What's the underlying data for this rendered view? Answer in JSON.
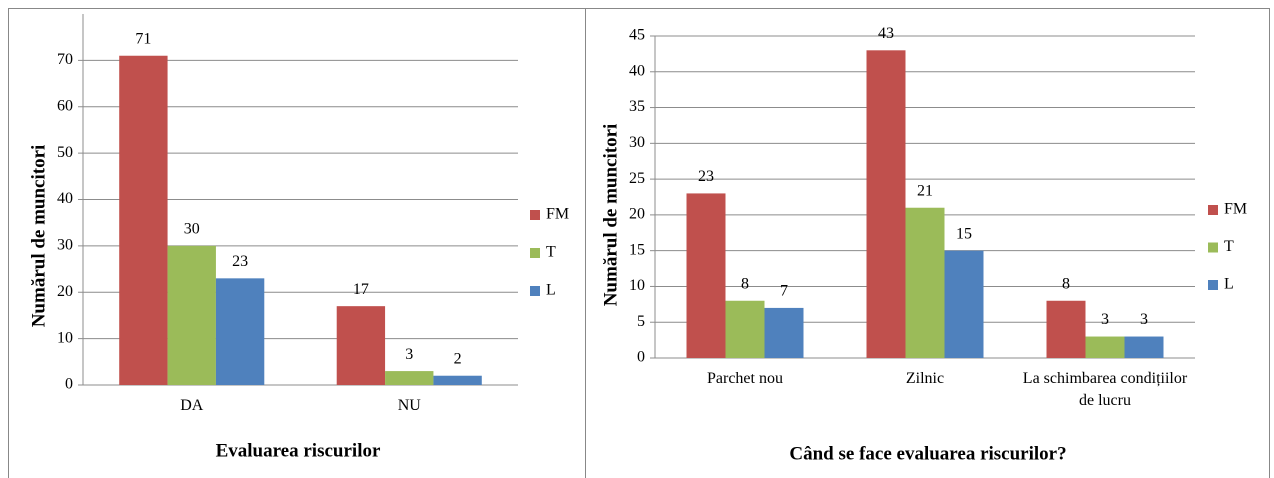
{
  "chart_data": [
    {
      "type": "bar",
      "x_label": "Evaluarea riscurilor",
      "y_label": "Numărul de muncitori",
      "categories": [
        "DA",
        "NU"
      ],
      "series": [
        {
          "name": "FM",
          "color": "#c0504d",
          "values": [
            71,
            17
          ]
        },
        {
          "name": "T",
          "color": "#9bbb59",
          "values": [
            30,
            3
          ]
        },
        {
          "name": "L",
          "color": "#4f81bd",
          "values": [
            23,
            2
          ]
        }
      ],
      "ylim": [
        0,
        80
      ],
      "yticks": [
        0,
        10,
        20,
        30,
        40,
        50,
        60,
        70
      ],
      "grid": true,
      "legend": "right"
    },
    {
      "type": "bar",
      "x_label": "Când se face evaluarea riscurilor?",
      "y_label": "Numărul de muncitori",
      "categories": [
        "Parchet nou",
        "Zilnic",
        "La schimbarea condițiilor de lucru"
      ],
      "series": [
        {
          "name": "FM",
          "color": "#c0504d",
          "values": [
            23,
            43,
            8
          ]
        },
        {
          "name": "T",
          "color": "#9bbb59",
          "values": [
            8,
            21,
            3
          ]
        },
        {
          "name": "L",
          "color": "#4f81bd",
          "values": [
            7,
            15,
            3
          ]
        }
      ],
      "ylim": [
        0,
        45
      ],
      "yticks": [
        0,
        5,
        10,
        15,
        20,
        25,
        30,
        35,
        40,
        45
      ],
      "grid": true,
      "legend": "right"
    }
  ]
}
